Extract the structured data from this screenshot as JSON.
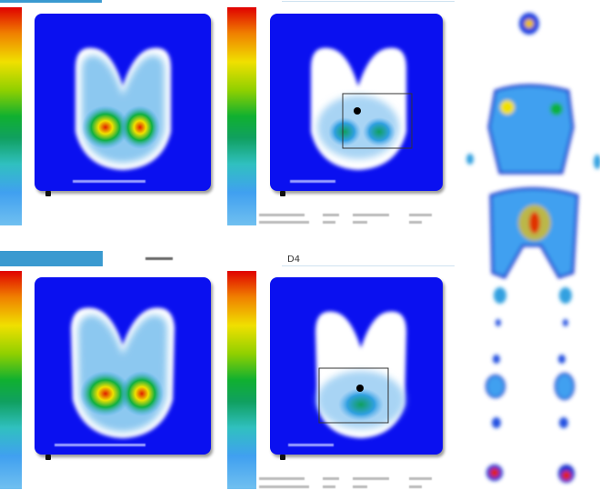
{
  "header": {
    "label": "D4"
  },
  "colors": {
    "panel_bg": "#0a10f0",
    "tab": "#3a9ad0",
    "high": "#e00000",
    "low": "#70c0f0"
  },
  "icons": [
    "colorbar-legend",
    "pressure-map",
    "selection-box",
    "marker-dot",
    "body-pressure-map"
  ]
}
